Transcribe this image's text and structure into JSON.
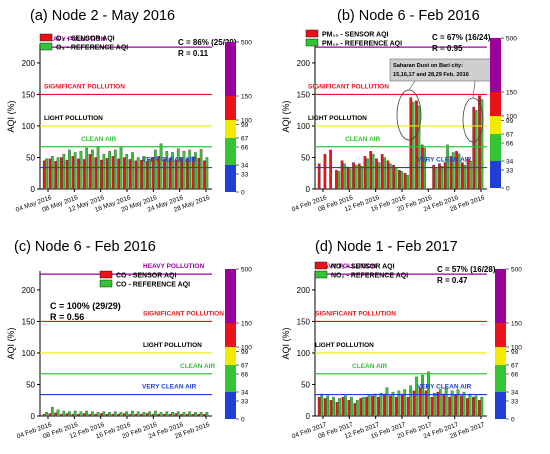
{
  "colors": {
    "sensor": "#e8141a",
    "reference": "#35c435",
    "heavy": "#9b009b",
    "significant": "#e8141a",
    "light": "#f2ea00",
    "clean": "#35c435",
    "veryclean": "#1f3fd6",
    "grid": "#000000"
  },
  "scale_bar": {
    "ticks": [
      "500",
      "150",
      "100",
      "99",
      "67",
      "66",
      "34",
      "33",
      "0"
    ]
  },
  "chart_data": [
    {
      "type": "bar",
      "title": "(a) Node 2 - May 2016",
      "ylabel": "AQI (%)",
      "ylim": [
        0,
        230
      ],
      "yticks": [
        "0",
        "50",
        "100",
        "150",
        "200"
      ],
      "xticklabels": [
        "04 May 2016",
        "08 May 2016",
        "12 May 2016",
        "16 May 2016",
        "20 May 2016",
        "24 May 2016",
        "28 May 2016"
      ],
      "legend": [
        {
          "name": "O₃ - SENSOR AQI",
          "color": "sensor"
        },
        {
          "name": "O₃ - REFERENCE AQI",
          "color": "reference"
        }
      ],
      "stats": [
        "C = 86% (25/29)",
        "R = 0.11"
      ],
      "zone_labels": {
        "heavy": "HEAVY POLLUTION",
        "significant": "SIGNIFICANT POLLUTION",
        "light": "LIGHT POLLUTION",
        "clean": "CLEAN AIR",
        "veryclean": "VERY CLEAN AIR"
      },
      "series": [
        {
          "name": "O₃ - SENSOR AQI",
          "values": [
            45,
            48,
            44,
            50,
            46,
            52,
            48,
            47,
            55,
            50,
            46,
            49,
            52,
            48,
            50,
            47,
            45,
            46,
            44,
            50,
            52,
            48,
            49,
            46,
            50,
            48,
            51,
            49,
            45
          ]
        },
        {
          "name": "O₃ - REFERENCE AQI",
          "values": [
            48,
            52,
            50,
            55,
            62,
            58,
            60,
            65,
            62,
            68,
            55,
            60,
            62,
            66,
            55,
            58,
            50,
            52,
            48,
            62,
            72,
            60,
            58,
            64,
            60,
            62,
            58,
            63,
            50
          ]
        }
      ]
    },
    {
      "type": "bar",
      "title": "(b) Node 6 - Feb 2016",
      "ylabel": "AQI (%)",
      "ylim": [
        0,
        230
      ],
      "yticks": [
        "0",
        "50",
        "100",
        "150",
        "200"
      ],
      "xticklabels": [
        "04 Feb 2016",
        "08 Feb 2016",
        "12 Feb 2016",
        "16 Feb 2016",
        "20 Feb 2016",
        "24 Feb 2016",
        "28 Feb 2016"
      ],
      "legend": [
        {
          "name": "PM₁₀ - SENSOR AQI",
          "color": "sensor"
        },
        {
          "name": "PM₁₀ - REFERENCE AQI",
          "color": "reference"
        }
      ],
      "stats": [
        "C = 67% (16/24)",
        "R = 0.95"
      ],
      "annotation": "Saharan Dust on Bari city: 15,16,17 and 28,29 Feb. 2016",
      "zone_labels": {
        "heavy": "",
        "significant": "SIGNIFICANT POLLUTION",
        "light": "LIGHT POLLUTION",
        "clean": "CLEAN AIR",
        "veryclean": "VERY CLEAN AIR"
      },
      "series": [
        {
          "name": "PM₁₀ - SENSOR AQI",
          "values": [
            40,
            55,
            62,
            30,
            45,
            35,
            42,
            40,
            52,
            60,
            48,
            55,
            45,
            38,
            30,
            25,
            145,
            140,
            70,
            0,
            38,
            40,
            42,
            52,
            60,
            42,
            48,
            130,
            148
          ]
        },
        {
          "name": "PM₁₀ - REFERENCE AQI",
          "values": [
            0,
            0,
            0,
            28,
            40,
            32,
            38,
            36,
            48,
            55,
            42,
            50,
            40,
            34,
            28,
            22,
            138,
            132,
            65,
            0,
            34,
            36,
            70,
            58,
            56,
            38,
            44,
            125,
            142
          ]
        }
      ]
    },
    {
      "type": "bar",
      "title": "(c) Node 6 - Feb 2016",
      "ylabel": "AQI (%)",
      "ylim": [
        0,
        230
      ],
      "yticks": [
        "0",
        "50",
        "100",
        "150",
        "200"
      ],
      "xticklabels": [
        "04 Feb 2016",
        "08 Feb 2016",
        "12 Feb 2016",
        "16 Feb 2016",
        "20 Feb 2016",
        "24 Feb 2016",
        "28 Feb 2016"
      ],
      "legend": [
        {
          "name": "CO - SENSOR AQI",
          "color": "sensor"
        },
        {
          "name": "CO - REFERENCE AQI",
          "color": "reference"
        }
      ],
      "stats": [
        "C = 100% (29/29)",
        "R = 0.56"
      ],
      "zone_labels": {
        "heavy": "HEAVY POLLUTION",
        "significant": "SIGNIFICANT POLLUTION",
        "light": "LIGHT POLLUTION",
        "clean": "CLEAN AIR",
        "veryclean": "VERY CLEAN AIR"
      },
      "series": [
        {
          "name": "CO - SENSOR AQI",
          "values": [
            3,
            4,
            5,
            3,
            4,
            3,
            3,
            4,
            3,
            3,
            4,
            3,
            3,
            3,
            4,
            3,
            3,
            3,
            4,
            3,
            3,
            3,
            3,
            4,
            3,
            3,
            3,
            3,
            3
          ]
        },
        {
          "name": "CO - REFERENCE AQI",
          "values": [
            6,
            14,
            10,
            8,
            7,
            8,
            7,
            8,
            7,
            6,
            7,
            6,
            7,
            6,
            7,
            8,
            7,
            6,
            7,
            8,
            6,
            7,
            6,
            7,
            6,
            7,
            6,
            6,
            6
          ]
        }
      ]
    },
    {
      "type": "bar",
      "title": "(d) Node 1 - Feb 2017",
      "ylabel": "AQI (%)",
      "ylim": [
        0,
        230
      ],
      "yticks": [
        "0",
        "50",
        "100",
        "150",
        "200"
      ],
      "xticklabels": [
        "04 Feb 2017",
        "08 Feb 2017",
        "12 Feb 2017",
        "16 Feb 2017",
        "20 Feb 2017",
        "24 Feb 2017",
        "28 Feb 2017"
      ],
      "legend": [
        {
          "name": "NO₂ - SENSOR AQI",
          "color": "sensor"
        },
        {
          "name": "NO₂ - REFERENCE AQI",
          "color": "reference"
        }
      ],
      "stats": [
        "C = 57% (16/28)",
        "R = 0.47"
      ],
      "zone_labels": {
        "heavy": "HEAVY POLLUTION",
        "significant": "SIGNIFICANT POLLUTION",
        "light": "LIGHT POLLUTION",
        "clean": "CLEAN AIR",
        "veryclean": "VERY CLEAN AIR"
      },
      "series": [
        {
          "name": "NO₂ - SENSOR AQI",
          "values": [
            30,
            28,
            25,
            22,
            30,
            25,
            20,
            28,
            30,
            32,
            30,
            35,
            32,
            30,
            35,
            30,
            40,
            45,
            40,
            30,
            38,
            35,
            30,
            34,
            32,
            28,
            30,
            25
          ]
        },
        {
          "name": "NO₂ - REFERENCE AQI",
          "values": [
            35,
            32,
            30,
            28,
            32,
            30,
            25,
            30,
            34,
            35,
            36,
            45,
            38,
            40,
            42,
            48,
            62,
            65,
            70,
            36,
            42,
            45,
            40,
            42,
            38,
            35,
            32,
            30
          ]
        }
      ]
    }
  ]
}
